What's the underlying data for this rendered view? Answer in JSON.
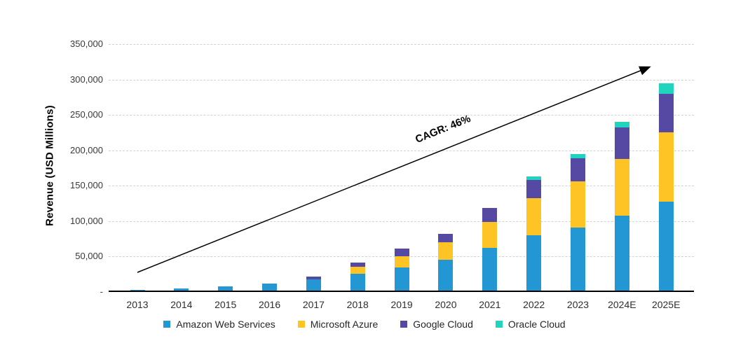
{
  "chart_data": {
    "type": "bar",
    "stacked": true,
    "title": "",
    "xlabel": "",
    "ylabel": "Revenue (USD Millions)",
    "ylim": [
      0,
      350000
    ],
    "y_tick_step": 50000,
    "grid": "dashed-horizontal",
    "legend_position": "bottom",
    "y_ticks": [
      {
        "value": 0,
        "label": "-"
      },
      {
        "value": 50000,
        "label": "50,000"
      },
      {
        "value": 100000,
        "label": "100,000"
      },
      {
        "value": 150000,
        "label": "150,000"
      },
      {
        "value": 200000,
        "label": "200,000"
      },
      {
        "value": 250000,
        "label": "250,000"
      },
      {
        "value": 300000,
        "label": "300,000"
      },
      {
        "value": 350000,
        "label": "350,000"
      }
    ],
    "categories": [
      "2013",
      "2014",
      "2015",
      "2016",
      "2017",
      "2018",
      "2019",
      "2020",
      "2021",
      "2022",
      "2023",
      "2024E",
      "2025E"
    ],
    "series": [
      {
        "name": "Amazon Web Services",
        "color": "#2397D3",
        "values": [
          3100,
          4600,
          8000,
          12200,
          17500,
          25500,
          35000,
          45400,
          62200,
          80000,
          90800,
          107600,
          127500
        ]
      },
      {
        "name": "Microsoft Azure",
        "color": "#FEC324",
        "values": [
          0,
          0,
          0,
          0,
          0,
          10500,
          15000,
          24500,
          36500,
          52000,
          65000,
          80000,
          98000
        ]
      },
      {
        "name": "Google Cloud",
        "color": "#5549A4",
        "values": [
          0,
          0,
          0,
          0,
          4500,
          5800,
          11000,
          12300,
          20000,
          26000,
          33300,
          45000,
          54300
        ]
      },
      {
        "name": "Oracle Cloud",
        "color": "#21D4BD",
        "values": [
          0,
          0,
          0,
          0,
          0,
          0,
          0,
          0,
          0,
          5300,
          5400,
          7700,
          14400
        ]
      }
    ],
    "annotation": {
      "label": "CAGR: 46%"
    }
  }
}
